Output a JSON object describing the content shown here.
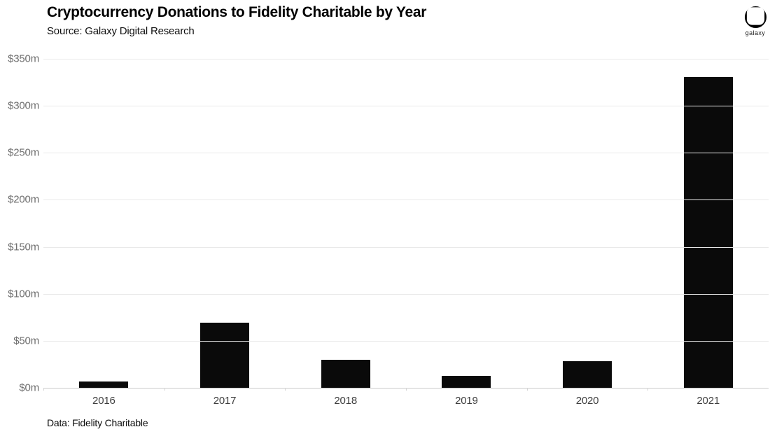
{
  "header": {
    "title": "Cryptocurrency Donations to Fidelity Charitable by Year",
    "subtitle": "Source: Galaxy Digital Research"
  },
  "logo": {
    "icon": "galaxy-circle-logo",
    "label": "galaxy"
  },
  "footer": {
    "note": "Data: Fidelity Charitable"
  },
  "colors": {
    "background": "#ffffff",
    "bar": "#0a0a0a",
    "gridline": "#e9e9e9",
    "axis_line": "#c9c9c9",
    "y_label": "#6f6f6f",
    "x_label": "#3e3e3e"
  },
  "chart_data": {
    "type": "bar",
    "title": "Cryptocurrency Donations to Fidelity Charitable by Year",
    "subtitle": "Source: Galaxy Digital Research",
    "categories": [
      "2016",
      "2017",
      "2018",
      "2019",
      "2020",
      "2021"
    ],
    "values": [
      7,
      69,
      30,
      13,
      28,
      331
    ],
    "unit": "millions USD",
    "xlabel": "",
    "ylabel": "",
    "ylim": [
      0,
      350
    ],
    "y_ticks": [
      {
        "label": "$0m",
        "value": 0
      },
      {
        "label": "$50m",
        "value": 50
      },
      {
        "label": "$100m",
        "value": 100
      },
      {
        "label": "$150m",
        "value": 150
      },
      {
        "label": "$200m",
        "value": 200
      },
      {
        "label": "$250m",
        "value": 250
      },
      {
        "label": "$300m",
        "value": 300
      },
      {
        "label": "$350m",
        "value": 350
      }
    ],
    "grid": "horizontal",
    "legend": "none",
    "annotation": "Data: Fidelity Charitable"
  }
}
